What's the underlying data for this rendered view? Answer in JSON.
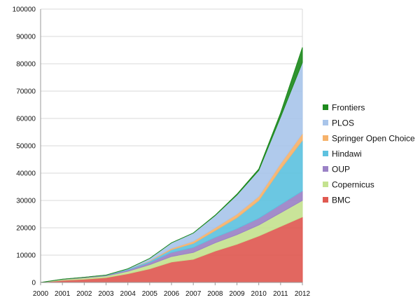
{
  "chart_data": {
    "type": "area",
    "stacked": true,
    "title": "",
    "xlabel": "",
    "ylabel": "",
    "x": [
      2000,
      2001,
      2002,
      2003,
      2004,
      2005,
      2006,
      2007,
      2008,
      2009,
      2010,
      2011,
      2012
    ],
    "ylim": [
      0,
      100000
    ],
    "yticks": [
      0,
      10000,
      20000,
      30000,
      40000,
      50000,
      60000,
      70000,
      80000,
      90000,
      100000
    ],
    "grid": true,
    "legend_position": "right",
    "series": [
      {
        "name": "BMC",
        "color": "#e05a52",
        "values": [
          0,
          800,
          1200,
          1800,
          3200,
          5000,
          7500,
          8500,
          11500,
          14000,
          17000,
          20500,
          24000
        ]
      },
      {
        "name": "Copernicus",
        "color": "#c4e290",
        "values": [
          0,
          300,
          500,
          600,
          900,
          1500,
          2000,
          2500,
          3000,
          3500,
          4000,
          5000,
          6000
        ]
      },
      {
        "name": "OUP",
        "color": "#9b82c6",
        "values": [
          0,
          100,
          200,
          200,
          500,
          800,
          1500,
          1800,
          2000,
          2200,
          2500,
          3000,
          3500
        ]
      },
      {
        "name": "Hindawi",
        "color": "#5ec2df",
        "values": [
          0,
          0,
          0,
          100,
          300,
          500,
          1000,
          1500,
          2500,
          4000,
          6500,
          13000,
          18500
        ]
      },
      {
        "name": "Springer Open Choice",
        "color": "#f6b26b",
        "values": [
          0,
          0,
          0,
          0,
          0,
          200,
          500,
          800,
          1000,
          1300,
          1500,
          2000,
          2500
        ]
      },
      {
        "name": "PLOS",
        "color": "#a9c5ea",
        "values": [
          0,
          0,
          0,
          0,
          100,
          800,
          2000,
          3000,
          4500,
          7000,
          9500,
          17000,
          26000
        ]
      },
      {
        "name": "Frontiers",
        "color": "#1e8a1e",
        "values": [
          0,
          0,
          0,
          0,
          0,
          0,
          0,
          0,
          100,
          300,
          500,
          1500,
          5500
        ]
      }
    ]
  }
}
